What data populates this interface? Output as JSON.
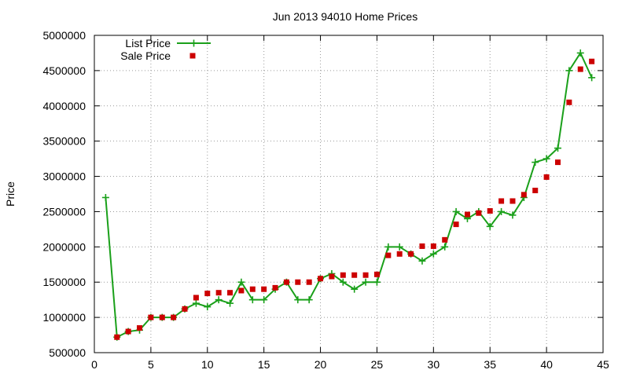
{
  "chart_data": {
    "type": "line",
    "title": "Jun 2013 94010 Home Prices",
    "xlabel": "",
    "ylabel": "Price",
    "xlim": [
      0,
      45
    ],
    "ylim": [
      500000,
      5000000
    ],
    "x_ticks": [
      0,
      5,
      10,
      15,
      20,
      25,
      30,
      35,
      40,
      45
    ],
    "y_ticks": [
      500000,
      1000000,
      1500000,
      2000000,
      2500000,
      3000000,
      3500000,
      4000000,
      4500000,
      5000000
    ],
    "grid": true,
    "legend_position": "top-left",
    "series": [
      {
        "name": "List Price",
        "style": "line-plus",
        "color": "#1aa01a",
        "x": [
          1,
          2,
          3,
          4,
          5,
          6,
          7,
          8,
          9,
          10,
          11,
          12,
          13,
          14,
          15,
          16,
          17,
          18,
          19,
          20,
          21,
          22,
          23,
          24,
          25,
          26,
          27,
          28,
          29,
          30,
          31,
          32,
          33,
          34,
          35,
          36,
          37,
          38,
          39,
          40,
          41,
          42,
          43,
          44
        ],
        "y": [
          2700000,
          720000,
          800000,
          820000,
          1000000,
          1000000,
          1000000,
          1120000,
          1200000,
          1150000,
          1250000,
          1200000,
          1500000,
          1250000,
          1250000,
          1400000,
          1500000,
          1250000,
          1250000,
          1550000,
          1620000,
          1500000,
          1400000,
          1500000,
          1500000,
          2000000,
          2000000,
          1900000,
          1800000,
          1900000,
          2000000,
          2500000,
          2400000,
          2500000,
          2290000,
          2500000,
          2450000,
          2700000,
          3200000,
          3250000,
          3400000,
          4500000,
          4750000,
          4400000
        ]
      },
      {
        "name": "Sale Price",
        "style": "square-points",
        "color": "#cc0000",
        "x": [
          2,
          3,
          4,
          5,
          6,
          7,
          8,
          9,
          10,
          11,
          12,
          13,
          14,
          15,
          16,
          17,
          18,
          19,
          20,
          21,
          22,
          23,
          24,
          25,
          26,
          27,
          28,
          29,
          30,
          31,
          32,
          33,
          34,
          35,
          36,
          37,
          38,
          39,
          40,
          41,
          42,
          43,
          44
        ],
        "y": [
          720000,
          800000,
          850000,
          1000000,
          1000000,
          1000000,
          1120000,
          1280000,
          1340000,
          1350000,
          1350000,
          1380000,
          1400000,
          1400000,
          1420000,
          1500000,
          1500000,
          1500000,
          1550000,
          1580000,
          1600000,
          1600000,
          1600000,
          1610000,
          1880000,
          1900000,
          1900000,
          2010000,
          2010000,
          2100000,
          2320000,
          2460000,
          2480000,
          2510000,
          2650000,
          2650000,
          2740000,
          2800000,
          2990000,
          3200000,
          4050000,
          4520000,
          4630000
        ]
      }
    ]
  }
}
